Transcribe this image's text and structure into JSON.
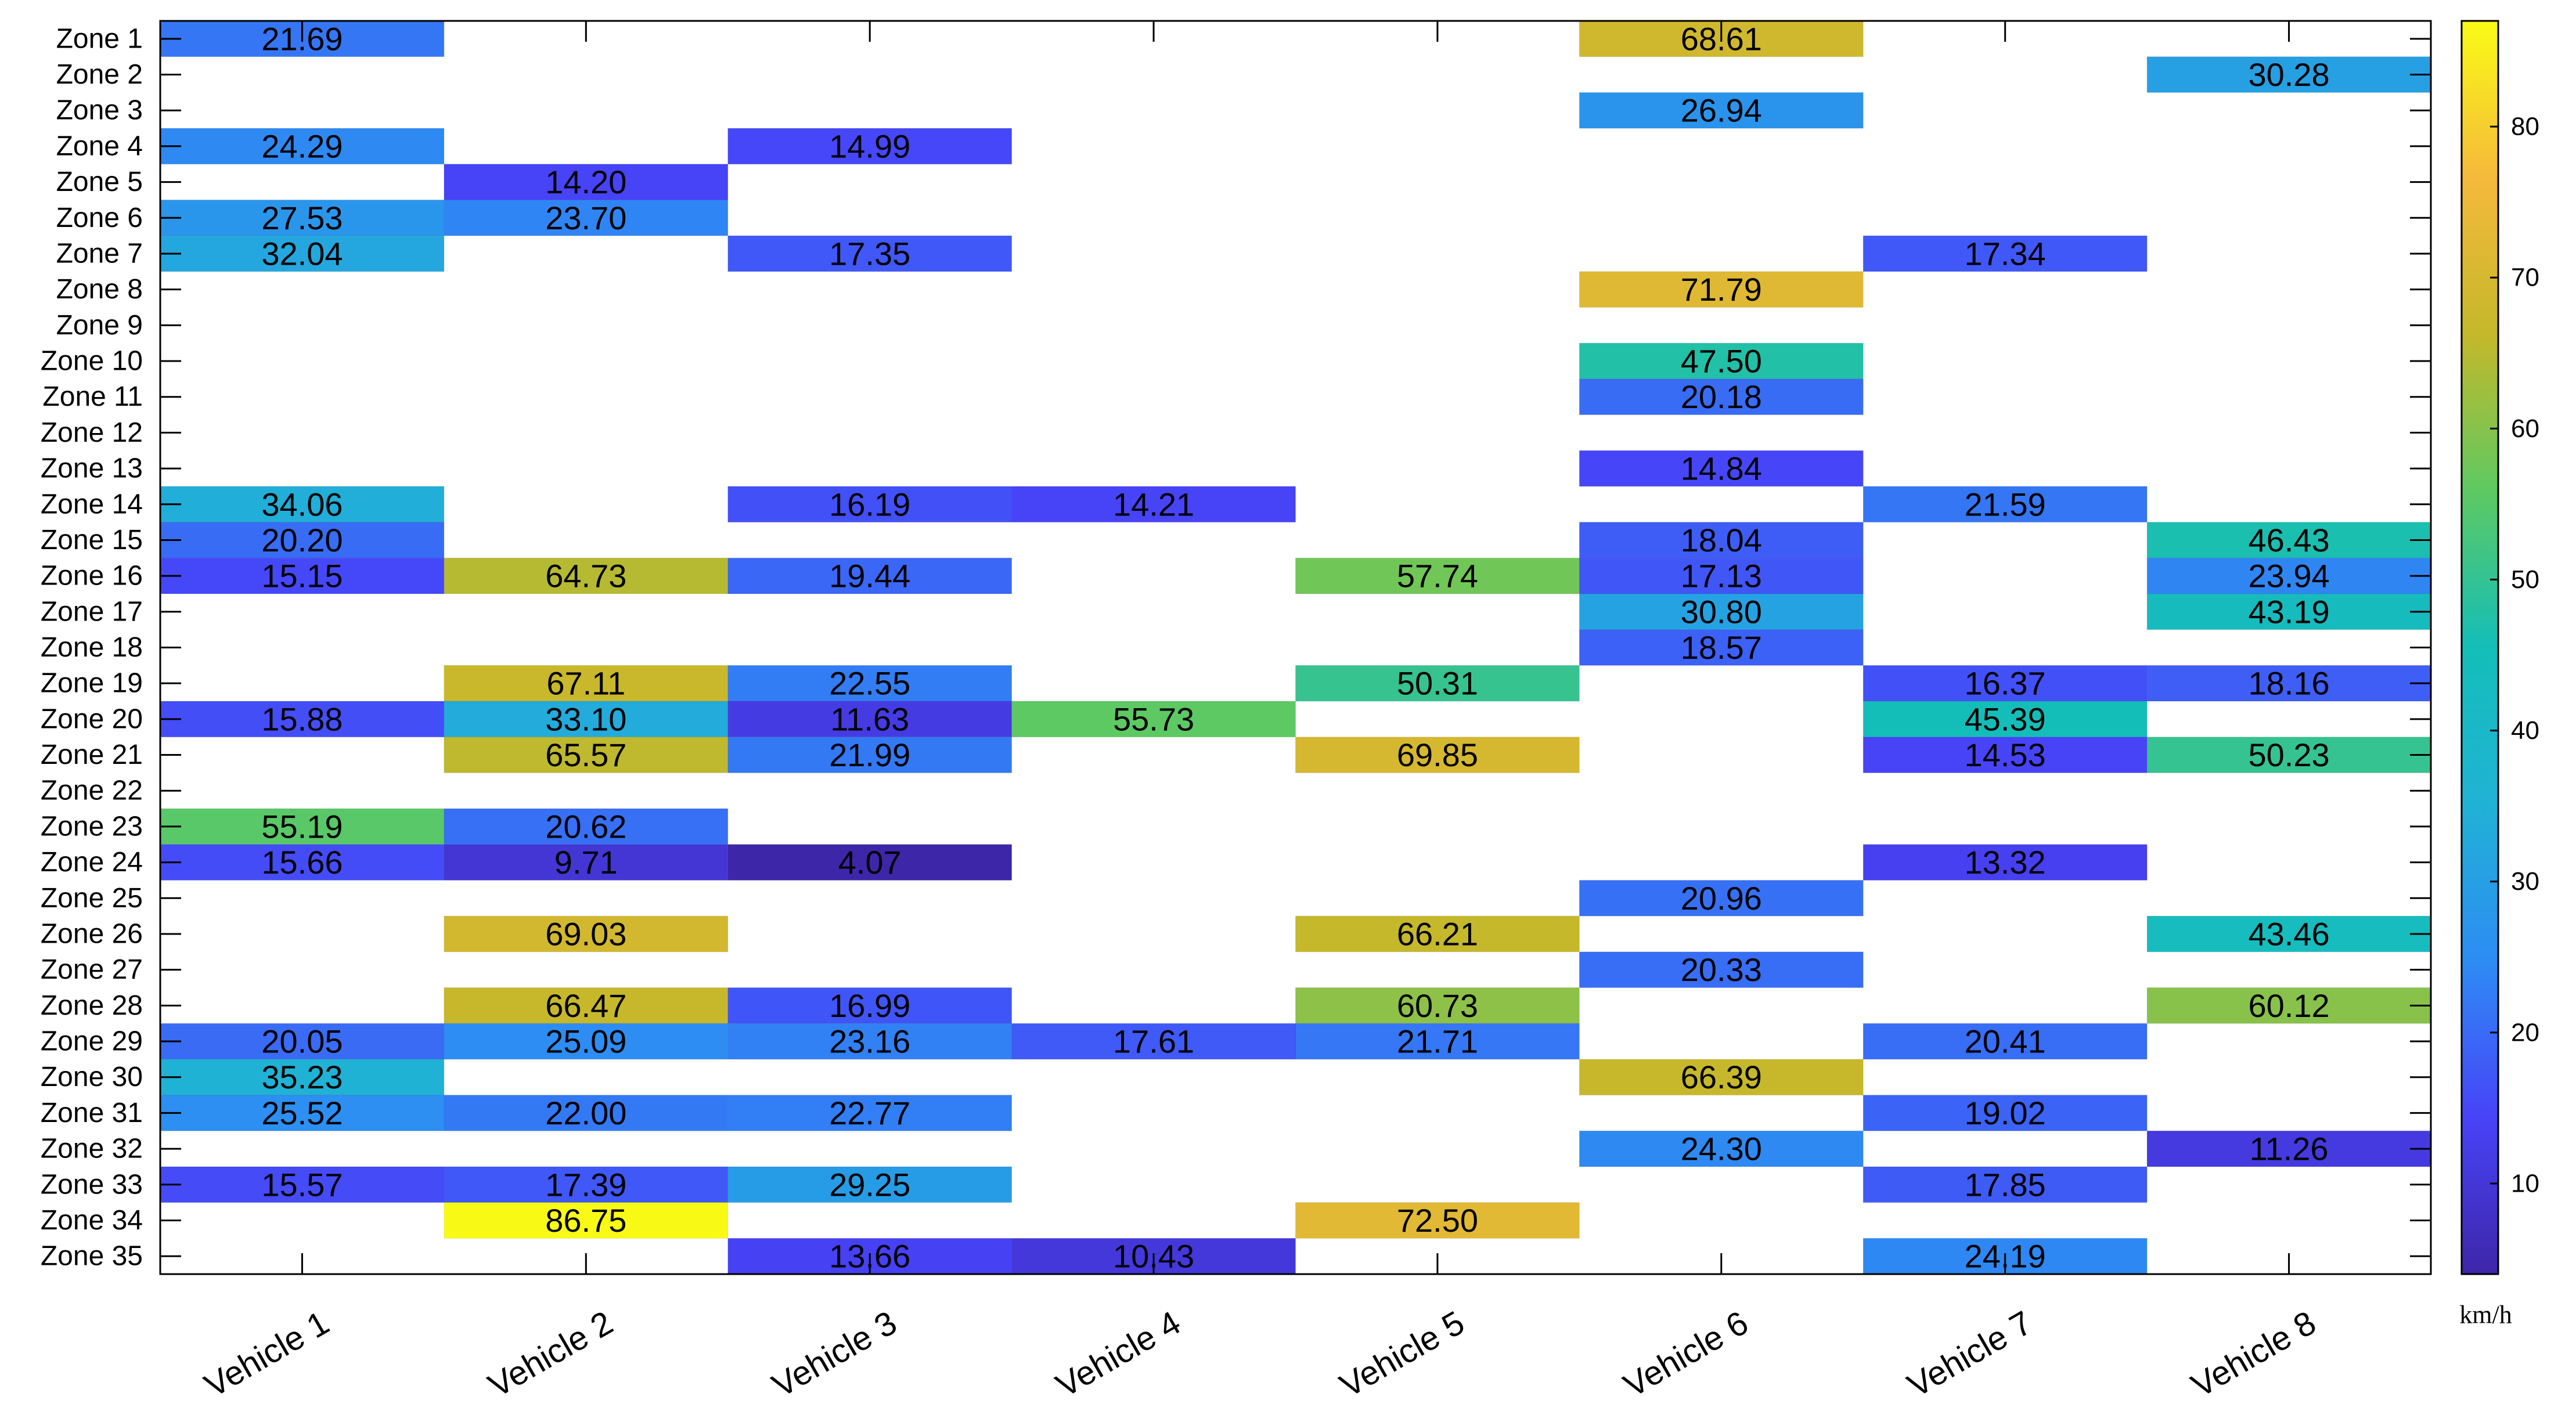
{
  "chart_data": {
    "type": "heatmap",
    "title": "",
    "xlabel": "",
    "ylabel": "",
    "columns": [
      "Vehicle 1",
      "Vehicle 2",
      "Vehicle 3",
      "Vehicle 4",
      "Vehicle 5",
      "Vehicle 6",
      "Vehicle 7",
      "Vehicle 8"
    ],
    "rows": [
      "Zone 1",
      "Zone 2",
      "Zone 3",
      "Zone 4",
      "Zone 5",
      "Zone 6",
      "Zone 7",
      "Zone 8",
      "Zone 9",
      "Zone 10",
      "Zone 11",
      "Zone 12",
      "Zone 13",
      "Zone 14",
      "Zone 15",
      "Zone 16",
      "Zone 17",
      "Zone 18",
      "Zone 19",
      "Zone 20",
      "Zone 21",
      "Zone 22",
      "Zone 23",
      "Zone 24",
      "Zone 25",
      "Zone 26",
      "Zone 27",
      "Zone 28",
      "Zone 29",
      "Zone 30",
      "Zone 31",
      "Zone 32",
      "Zone 33",
      "Zone 34",
      "Zone 35"
    ],
    "cells": [
      {
        "row": 1,
        "col": 1,
        "label": "21.69"
      },
      {
        "row": 1,
        "col": 6,
        "label": "68.61"
      },
      {
        "row": 2,
        "col": 8,
        "label": "30.28"
      },
      {
        "row": 3,
        "col": 6,
        "label": "26.94"
      },
      {
        "row": 4,
        "col": 1,
        "label": "24.29"
      },
      {
        "row": 4,
        "col": 3,
        "label": "14.99"
      },
      {
        "row": 5,
        "col": 2,
        "label": "14.20"
      },
      {
        "row": 6,
        "col": 1,
        "label": "27.53"
      },
      {
        "row": 6,
        "col": 2,
        "label": "23.70"
      },
      {
        "row": 7,
        "col": 1,
        "label": "32.04"
      },
      {
        "row": 7,
        "col": 3,
        "label": "17.35"
      },
      {
        "row": 7,
        "col": 7,
        "label": "17.34"
      },
      {
        "row": 8,
        "col": 6,
        "label": "71.79"
      },
      {
        "row": 10,
        "col": 6,
        "label": "47.50"
      },
      {
        "row": 11,
        "col": 6,
        "label": "20.18"
      },
      {
        "row": 13,
        "col": 6,
        "label": "14.84"
      },
      {
        "row": 14,
        "col": 1,
        "label": "34.06"
      },
      {
        "row": 14,
        "col": 3,
        "label": "16.19"
      },
      {
        "row": 14,
        "col": 4,
        "label": "14.21"
      },
      {
        "row": 14,
        "col": 7,
        "label": "21.59"
      },
      {
        "row": 15,
        "col": 1,
        "label": "20.20"
      },
      {
        "row": 15,
        "col": 6,
        "label": "18.04"
      },
      {
        "row": 15,
        "col": 8,
        "label": "46.43"
      },
      {
        "row": 16,
        "col": 1,
        "label": "15.15"
      },
      {
        "row": 16,
        "col": 2,
        "label": "64.73"
      },
      {
        "row": 16,
        "col": 3,
        "label": "19.44"
      },
      {
        "row": 16,
        "col": 5,
        "label": "57.74"
      },
      {
        "row": 16,
        "col": 6,
        "label": "17.13"
      },
      {
        "row": 16,
        "col": 8,
        "label": "23.94"
      },
      {
        "row": 17,
        "col": 6,
        "label": "30.80"
      },
      {
        "row": 17,
        "col": 8,
        "label": "43.19"
      },
      {
        "row": 18,
        "col": 6,
        "label": "18.57"
      },
      {
        "row": 19,
        "col": 2,
        "label": "67.11"
      },
      {
        "row": 19,
        "col": 3,
        "label": "22.55"
      },
      {
        "row": 19,
        "col": 5,
        "label": "50.31"
      },
      {
        "row": 19,
        "col": 7,
        "label": "16.37"
      },
      {
        "row": 19,
        "col": 8,
        "label": "18.16"
      },
      {
        "row": 20,
        "col": 1,
        "label": "15.88"
      },
      {
        "row": 20,
        "col": 2,
        "label": "33.10"
      },
      {
        "row": 20,
        "col": 3,
        "label": "11.63"
      },
      {
        "row": 20,
        "col": 4,
        "label": "55.73"
      },
      {
        "row": 20,
        "col": 7,
        "label": "45.39"
      },
      {
        "row": 21,
        "col": 2,
        "label": "65.57"
      },
      {
        "row": 21,
        "col": 3,
        "label": "21.99"
      },
      {
        "row": 21,
        "col": 5,
        "label": "69.85"
      },
      {
        "row": 21,
        "col": 7,
        "label": "14.53"
      },
      {
        "row": 21,
        "col": 8,
        "label": "50.23"
      },
      {
        "row": 23,
        "col": 1,
        "label": "55.19"
      },
      {
        "row": 23,
        "col": 2,
        "label": "20.62"
      },
      {
        "row": 24,
        "col": 1,
        "label": "15.66"
      },
      {
        "row": 24,
        "col": 2,
        "label": "9.71"
      },
      {
        "row": 24,
        "col": 3,
        "label": "4.07"
      },
      {
        "row": 24,
        "col": 7,
        "label": "13.32"
      },
      {
        "row": 25,
        "col": 6,
        "label": "20.96"
      },
      {
        "row": 26,
        "col": 2,
        "label": "69.03"
      },
      {
        "row": 26,
        "col": 5,
        "label": "66.21"
      },
      {
        "row": 26,
        "col": 8,
        "label": "43.46"
      },
      {
        "row": 27,
        "col": 6,
        "label": "20.33"
      },
      {
        "row": 28,
        "col": 2,
        "label": "66.47"
      },
      {
        "row": 28,
        "col": 3,
        "label": "16.99"
      },
      {
        "row": 28,
        "col": 5,
        "label": "60.73"
      },
      {
        "row": 28,
        "col": 8,
        "label": "60.12"
      },
      {
        "row": 29,
        "col": 1,
        "label": "20.05"
      },
      {
        "row": 29,
        "col": 2,
        "label": "25.09"
      },
      {
        "row": 29,
        "col": 3,
        "label": "23.16"
      },
      {
        "row": 29,
        "col": 4,
        "label": "17.61"
      },
      {
        "row": 29,
        "col": 5,
        "label": "21.71"
      },
      {
        "row": 29,
        "col": 7,
        "label": "20.41"
      },
      {
        "row": 30,
        "col": 1,
        "label": "35.23"
      },
      {
        "row": 30,
        "col": 6,
        "label": "66.39"
      },
      {
        "row": 31,
        "col": 1,
        "label": "25.52"
      },
      {
        "row": 31,
        "col": 2,
        "label": "22.00"
      },
      {
        "row": 31,
        "col": 3,
        "label": "22.77"
      },
      {
        "row": 31,
        "col": 7,
        "label": "19.02"
      },
      {
        "row": 32,
        "col": 6,
        "label": "24.30"
      },
      {
        "row": 32,
        "col": 8,
        "label": "11.26"
      },
      {
        "row": 33,
        "col": 1,
        "label": "15.57"
      },
      {
        "row": 33,
        "col": 2,
        "label": "17.39"
      },
      {
        "row": 33,
        "col": 3,
        "label": "29.25"
      },
      {
        "row": 33,
        "col": 7,
        "label": "17.85"
      },
      {
        "row": 34,
        "col": 2,
        "label": "86.75"
      },
      {
        "row": 34,
        "col": 5,
        "label": "72.50"
      },
      {
        "row": 35,
        "col": 3,
        "label": "13.66"
      },
      {
        "row": 35,
        "col": 4,
        "label": "10.43"
      },
      {
        "row": 35,
        "col": 7,
        "label": "24.19"
      }
    ],
    "colorbar": {
      "label": "km/h",
      "range": [
        4,
        87
      ],
      "ticks": [
        10,
        20,
        30,
        40,
        50,
        60,
        70,
        80
      ],
      "colormap": [
        "#3e26a8",
        "#4743f8",
        "#2d8cf3",
        "#20b2d5",
        "#13beb8",
        "#5ec962",
        "#c5b82a",
        "#f5b93b",
        "#f9fb15"
      ]
    },
    "grid": false,
    "legend": "colorbar-right"
  }
}
